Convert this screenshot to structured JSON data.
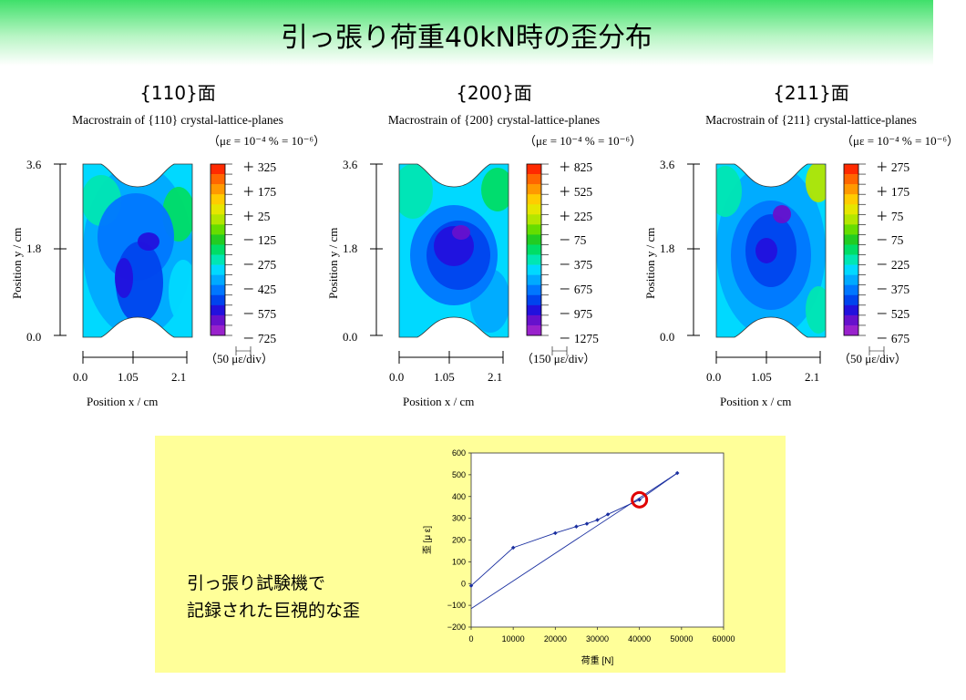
{
  "slide_title": "引っ張り荷重40kN時の歪分布",
  "panels": [
    {
      "plane": "{110}面",
      "caption": "Macrostrain of {110} crystal-lattice-planes",
      "units": "（με = 10⁻⁴ % = 10⁻⁶）",
      "y_axis_title": "Position y / cm",
      "x_axis_title": "Position x / cm",
      "y_ticks": [
        "3.6",
        "1.8",
        "0.0"
      ],
      "x_ticks": [
        "0.0",
        "1.05",
        "2.1"
      ],
      "legend": [
        "＋ 325",
        "＋ 175",
        "＋ 25",
        "－ 125",
        "－ 275",
        "－ 425",
        "－ 575",
        "－ 725"
      ],
      "division": "（50 με/div）"
    },
    {
      "plane": "{200}面",
      "caption": "Macrostrain of {200} crystal-lattice-planes",
      "units": "（με = 10⁻⁴ % = 10⁻⁶）",
      "y_axis_title": "Position y / cm",
      "x_axis_title": "Position x / cm",
      "y_ticks": [
        "3.6",
        "1.8",
        "0.0"
      ],
      "x_ticks": [
        "0.0",
        "1.05",
        "2.1"
      ],
      "legend": [
        "＋ 825",
        "＋ 525",
        "＋ 225",
        "－ 75",
        "－ 375",
        "－ 675",
        "－ 975",
        "－ 1275"
      ],
      "division": "（150 με/div）"
    },
    {
      "plane": "{211}面",
      "caption": "Macrostrain of {211} crystal-lattice-planes",
      "units": "（με = 10⁻⁴ % = 10⁻⁶）",
      "y_axis_title": "Position y / cm",
      "x_axis_title": "Position x / cm",
      "y_ticks": [
        "3.6",
        "1.8",
        "0.0"
      ],
      "x_ticks": [
        "0.0",
        "1.05",
        "2.1"
      ],
      "legend": [
        "＋ 275",
        "＋ 175",
        "＋ 75",
        "－ 75",
        "－ 225",
        "－ 375",
        "－ 525",
        "－ 675"
      ],
      "division": "（50 με/div）"
    }
  ],
  "colorbar": [
    "#ff2a00",
    "#ff6600",
    "#ff9900",
    "#ffcc00",
    "#e6e600",
    "#b3e600",
    "#66dd00",
    "#22cc22",
    "#00dd66",
    "#00e6b3",
    "#00d9ff",
    "#00aaff",
    "#0077ff",
    "#0044ee",
    "#2211dd",
    "#6611cc",
    "#9922cc"
  ],
  "box_text": [
    "引っ張り試験機で",
    "記録された巨視的な歪"
  ],
  "chart_data": {
    "type": "line",
    "xlabel": "荷重 [N]",
    "ylabel": "歪 [μ ε]",
    "xlim": [
      0,
      60000
    ],
    "ylim": [
      -200,
      600
    ],
    "x_ticks": [
      "0",
      "10000",
      "20000",
      "30000",
      "40000",
      "50000",
      "60000"
    ],
    "y_ticks": [
      "600",
      "500",
      "400",
      "300",
      "200",
      "100",
      "0",
      "−100",
      "−200"
    ],
    "series": [
      {
        "x": [
          0,
          10000,
          20000,
          25000,
          27500,
          30000,
          32500,
          40000,
          49000
        ],
        "y": [
          -10,
          165,
          232,
          262,
          275,
          292,
          318,
          385,
          508
        ]
      },
      {
        "x": [
          0,
          49000
        ],
        "y": [
          -115,
          508
        ]
      }
    ],
    "highlight": {
      "x": 40000,
      "y": 385
    },
    "colors": {
      "line": "#1a2fa0",
      "highlight": "#e00000"
    }
  }
}
